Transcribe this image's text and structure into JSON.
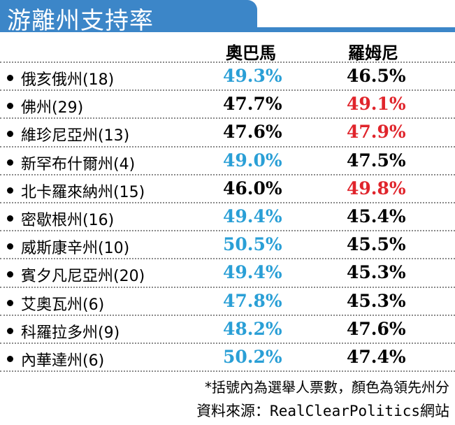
{
  "title": "游離州支持率",
  "colors": {
    "header": "#3c86c8",
    "leader_obama": "#2a9fd6",
    "leader_romney": "#e0242b",
    "neutral": "#000000"
  },
  "chart_data": {
    "type": "table",
    "columns": [
      "奧巴馬",
      "羅姆尼"
    ],
    "rows": [
      {
        "state": "俄亥俄州(18)",
        "obama": "49.3%",
        "romney": "46.5%",
        "leader": "obama"
      },
      {
        "state": "佛州(29)",
        "obama": "47.7%",
        "romney": "49.1%",
        "leader": "romney"
      },
      {
        "state": "維珍尼亞州(13)",
        "obama": "47.6%",
        "romney": "47.9%",
        "leader": "romney"
      },
      {
        "state": "新罕布什爾州(4)",
        "obama": "49.0%",
        "romney": "47.5%",
        "leader": "obama"
      },
      {
        "state": "北卡羅來納州(15)",
        "obama": "46.0%",
        "romney": "49.8%",
        "leader": "romney"
      },
      {
        "state": "密歇根州(16)",
        "obama": "49.4%",
        "romney": "45.4%",
        "leader": "obama"
      },
      {
        "state": "威斯康辛州(10)",
        "obama": "50.5%",
        "romney": "45.5%",
        "leader": "obama"
      },
      {
        "state": "賓夕凡尼亞州(20)",
        "obama": "49.4%",
        "romney": "45.3%",
        "leader": "obama"
      },
      {
        "state": "艾奧瓦州(6)",
        "obama": "47.8%",
        "romney": "45.3%",
        "leader": "obama"
      },
      {
        "state": "科羅拉多州(9)",
        "obama": "48.2%",
        "romney": "47.6%",
        "leader": "obama"
      },
      {
        "state": "內華達州(6)",
        "obama": "50.2%",
        "romney": "47.4%",
        "leader": "obama"
      }
    ]
  },
  "note": "*括號內為選舉人票數，顏色為領先州分",
  "source": "資料來源：RealClearPolitics網站"
}
